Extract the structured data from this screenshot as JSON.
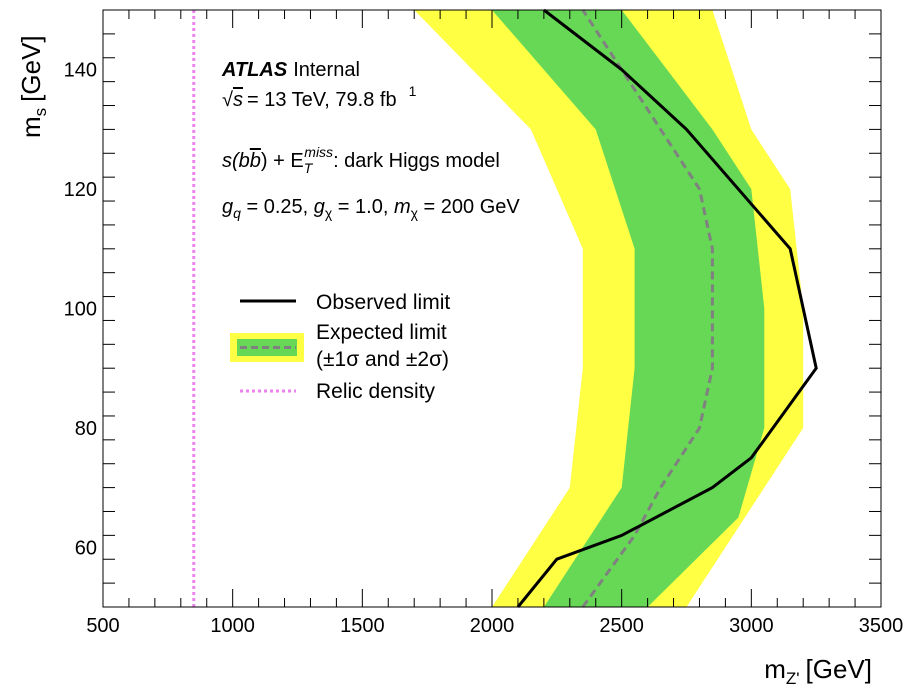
{
  "chart_data": {
    "type": "line",
    "xlabel_main": "m",
    "xlabel_sub": "Z'",
    "xlabel_unit": "[GeV]",
    "ylabel_main": "m",
    "ylabel_sub": "s",
    "ylabel_unit": "[GeV]",
    "xlim": [
      500,
      3500
    ],
    "ylim": [
      50,
      150
    ],
    "x_ticks": [
      500,
      1000,
      1500,
      2000,
      2500,
      3000,
      3500
    ],
    "y_ticks": [
      60,
      80,
      100,
      120,
      140
    ],
    "grid": false,
    "legend_placement": "middle-left",
    "annotations": {
      "experiment": "ATLAS",
      "status": "Internal",
      "energy_line": "= 13 TeV, 79.8 fb",
      "energy_sqrt_symbol": "√",
      "energy_s": "s",
      "energy_exp": "1",
      "model_prefix": "s(b",
      "model_bbar": "b",
      "model_mid": ") + E",
      "model_sup": "miss",
      "model_sub": "T",
      "model_suffix": ": dark Higgs model",
      "params_gq": "g",
      "params_gq_sub": "q",
      "params_gq_val": " = 0.25, ",
      "params_gx": "g",
      "params_gx_sub": "χ",
      "params_gx_val": " = 1.0, ",
      "params_m": "m",
      "params_m_sub": "χ",
      "params_m_val": " = 200 GeV"
    },
    "legend": {
      "observed": "Observed limit",
      "expected_line1": "Expected limit",
      "expected_line2": "(±1σ and ±2σ)",
      "relic": "Relic density"
    },
    "colors": {
      "observed": "#000000",
      "expected": "#808080",
      "band1": "#66d855",
      "band2": "#ffff44",
      "relic": "#ee82ee"
    },
    "band_2sigma": {
      "outer": [
        [
          2750,
          50
        ],
        [
          3050,
          70
        ],
        [
          3200,
          80
        ],
        [
          3200,
          100
        ],
        [
          3150,
          120
        ],
        [
          3000,
          130
        ],
        [
          2850,
          150
        ]
      ],
      "inner": [
        [
          1700,
          150
        ],
        [
          2150,
          130
        ],
        [
          2350,
          110
        ],
        [
          2350,
          90
        ],
        [
          2300,
          70
        ],
        [
          2000,
          50
        ]
      ]
    },
    "band_1sigma": {
      "outer": [
        [
          2600,
          50
        ],
        [
          2950,
          65
        ],
        [
          3050,
          80
        ],
        [
          3050,
          100
        ],
        [
          3000,
          120
        ],
        [
          2850,
          130
        ],
        [
          2500,
          150
        ]
      ],
      "inner": [
        [
          2000,
          150
        ],
        [
          2400,
          130
        ],
        [
          2550,
          110
        ],
        [
          2550,
          90
        ],
        [
          2500,
          70
        ],
        [
          2200,
          50
        ]
      ]
    },
    "expected": [
      [
        2350,
        50
      ],
      [
        2550,
        62
      ],
      [
        2650,
        70
      ],
      [
        2800,
        80
      ],
      [
        2850,
        90
      ],
      [
        2850,
        110
      ],
      [
        2800,
        120
      ],
      [
        2650,
        130
      ],
      [
        2350,
        150
      ]
    ],
    "observed": [
      [
        2100,
        50
      ],
      [
        2250,
        58
      ],
      [
        2500,
        62
      ],
      [
        2850,
        70
      ],
      [
        3000,
        75
      ],
      [
        3250,
        90
      ],
      [
        3150,
        110
      ],
      [
        2750,
        130
      ],
      [
        2500,
        140
      ],
      [
        2200,
        150
      ]
    ],
    "relic_x": 850
  }
}
